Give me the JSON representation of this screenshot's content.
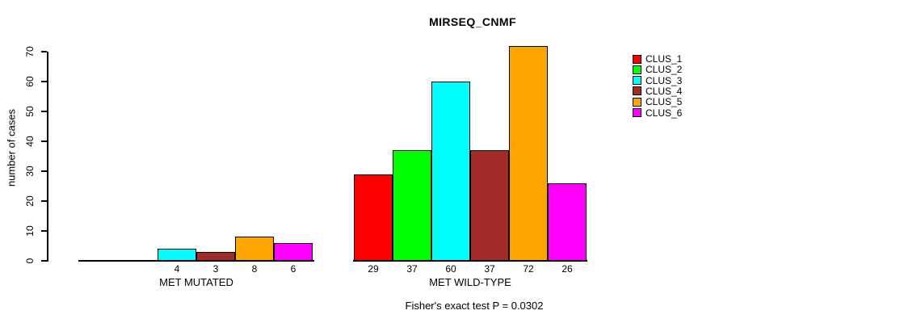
{
  "chart_data": {
    "type": "bar",
    "title": "MIRSEQ_CNMF",
    "ylabel": "number of cases",
    "xlabel": "",
    "ylim": [
      0,
      70
    ],
    "yticks": [
      0,
      10,
      20,
      30,
      40,
      50,
      60,
      70
    ],
    "grid": false,
    "legend_position": "top-right",
    "annotation": "Fisher's exact test P = 0.0302",
    "categories": [
      "MET MUTATED",
      "MET WILD-TYPE"
    ],
    "series": [
      {
        "name": "CLUS_1",
        "color": "#FF0000",
        "values": [
          0,
          29
        ]
      },
      {
        "name": "CLUS_2",
        "color": "#00FF00",
        "values": [
          0,
          37
        ]
      },
      {
        "name": "CLUS_3",
        "color": "#00FFFF",
        "values": [
          4,
          60
        ]
      },
      {
        "name": "CLUS_4",
        "color": "#A52A2A",
        "values": [
          3,
          37
        ]
      },
      {
        "name": "CLUS_5",
        "color": "#FFA500",
        "values": [
          8,
          72
        ]
      },
      {
        "name": "CLUS_6",
        "color": "#FF00FF",
        "values": [
          6,
          26
        ]
      }
    ],
    "bar_value_labels": {
      "MET MUTATED": [
        "",
        "",
        "4",
        "3",
        "8",
        "6"
      ],
      "MET WILD-TYPE": [
        "29",
        "37",
        "60",
        "37",
        "72",
        "26"
      ]
    }
  }
}
